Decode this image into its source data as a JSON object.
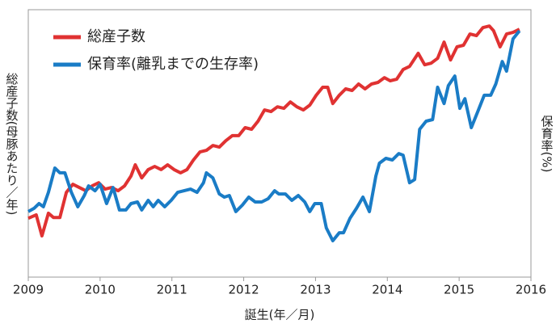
{
  "chart_data": {
    "type": "line",
    "x_label": "誕生(年／月)",
    "y_label": "総産子数(母豚あたり／年)",
    "y2_label": "保育率(%)",
    "xlim": [
      2009,
      2016
    ],
    "xticks": [
      2009,
      2010,
      2011,
      2012,
      2013,
      2014,
      2015,
      2016
    ],
    "ylim": [
      0,
      100
    ],
    "y2lim": [
      0,
      100
    ],
    "legend": "top-left",
    "series": [
      {
        "name": "総産子数",
        "color": "#e03232",
        "x": [
          2009.0,
          2009.11,
          2009.19,
          2009.28,
          2009.35,
          2009.44,
          2009.53,
          2009.62,
          2009.71,
          2009.8,
          2009.89,
          2009.98,
          2010.07,
          2010.16,
          2010.25,
          2010.34,
          2010.43,
          2010.49,
          2010.58,
          2010.67,
          2010.76,
          2010.85,
          2010.94,
          2011.03,
          2011.12,
          2011.21,
          2011.3,
          2011.39,
          2011.48,
          2011.57,
          2011.66,
          2011.75,
          2011.84,
          2011.93,
          2012.02,
          2012.11,
          2012.2,
          2012.29,
          2012.38,
          2012.47,
          2012.56,
          2012.65,
          2012.74,
          2012.83,
          2012.92,
          2013.01,
          2013.1,
          2013.17,
          2013.24,
          2013.33,
          2013.42,
          2013.51,
          2013.6,
          2013.69,
          2013.78,
          2013.87,
          2013.96,
          2014.04,
          2014.13,
          2014.22,
          2014.31,
          2014.43,
          2014.52,
          2014.61,
          2014.7,
          2014.79,
          2014.88,
          2014.97,
          2015.06,
          2015.15,
          2015.24,
          2015.33,
          2015.42,
          2015.48,
          2015.57,
          2015.66,
          2015.75,
          2015.84
        ],
        "values": [
          22.0,
          23.3,
          15.4,
          23.9,
          22.3,
          22.3,
          31.7,
          34.7,
          33.5,
          32.3,
          34.1,
          35.3,
          32.9,
          33.5,
          32.3,
          34.1,
          37.8,
          42.0,
          37.1,
          40.2,
          41.4,
          40.2,
          42.0,
          40.2,
          39.0,
          40.2,
          43.8,
          46.8,
          47.4,
          49.2,
          48.6,
          51.0,
          52.9,
          52.9,
          55.9,
          55.3,
          58.3,
          62.5,
          61.9,
          63.7,
          63.1,
          65.5,
          63.7,
          62.5,
          64.3,
          68.0,
          71.0,
          71.0,
          64.9,
          68.0,
          70.4,
          69.8,
          72.2,
          70.4,
          72.2,
          72.8,
          74.6,
          73.4,
          74.0,
          77.6,
          78.8,
          83.7,
          79.4,
          80.0,
          81.8,
          87.9,
          81.2,
          86.1,
          86.7,
          90.9,
          90.3,
          93.3,
          93.9,
          92.1,
          86.1,
          90.9,
          91.5,
          92.7
        ]
      },
      {
        "name": "保育率(離乳までの生存率)",
        "color": "#1a7cc6",
        "axis": "y2",
        "x": [
          2009.0,
          2009.08,
          2009.15,
          2009.21,
          2009.28,
          2009.37,
          2009.44,
          2009.51,
          2009.6,
          2009.69,
          2009.78,
          2009.84,
          2009.93,
          2010.0,
          2010.09,
          2010.18,
          2010.27,
          2010.36,
          2010.43,
          2010.52,
          2010.58,
          2010.67,
          2010.74,
          2010.81,
          2010.9,
          2010.99,
          2011.08,
          2011.17,
          2011.26,
          2011.35,
          2011.44,
          2011.48,
          2011.57,
          2011.66,
          2011.73,
          2011.8,
          2011.89,
          2011.98,
          2012.07,
          2012.16,
          2012.25,
          2012.34,
          2012.43,
          2012.49,
          2012.58,
          2012.67,
          2012.76,
          2012.85,
          2012.92,
          2012.99,
          2013.08,
          2013.15,
          2013.24,
          2013.33,
          2013.39,
          2013.48,
          2013.57,
          2013.66,
          2013.75,
          2013.84,
          2013.89,
          2013.98,
          2014.07,
          2014.16,
          2014.22,
          2014.31,
          2014.38,
          2014.45,
          2014.54,
          2014.63,
          2014.7,
          2014.79,
          2014.85,
          2014.94,
          2015.01,
          2015.08,
          2015.17,
          2015.26,
          2015.35,
          2015.44,
          2015.51,
          2015.6,
          2015.66,
          2015.75,
          2015.84
        ],
        "values": [
          24.5,
          25.7,
          27.5,
          26.3,
          31.7,
          40.8,
          39.0,
          39.0,
          31.7,
          26.3,
          30.5,
          34.1,
          32.3,
          34.7,
          27.5,
          33.5,
          25.1,
          25.1,
          27.5,
          28.1,
          25.1,
          28.7,
          26.3,
          28.7,
          26.3,
          28.7,
          31.7,
          32.3,
          32.9,
          31.7,
          35.3,
          39.0,
          37.1,
          31.1,
          29.9,
          30.5,
          24.5,
          26.9,
          29.9,
          28.1,
          28.1,
          29.3,
          32.3,
          31.1,
          31.1,
          28.7,
          30.5,
          28.1,
          24.5,
          27.5,
          27.5,
          18.4,
          13.6,
          16.6,
          16.6,
          22.0,
          25.7,
          29.9,
          24.5,
          37.8,
          42.6,
          44.4,
          43.8,
          46.2,
          45.6,
          35.3,
          36.5,
          55.3,
          58.3,
          58.9,
          71.0,
          64.9,
          71.6,
          75.2,
          63.1,
          66.7,
          55.9,
          61.9,
          68.0,
          68.0,
          72.2,
          80.6,
          77.0,
          89.1,
          92.1
        ]
      }
    ]
  }
}
